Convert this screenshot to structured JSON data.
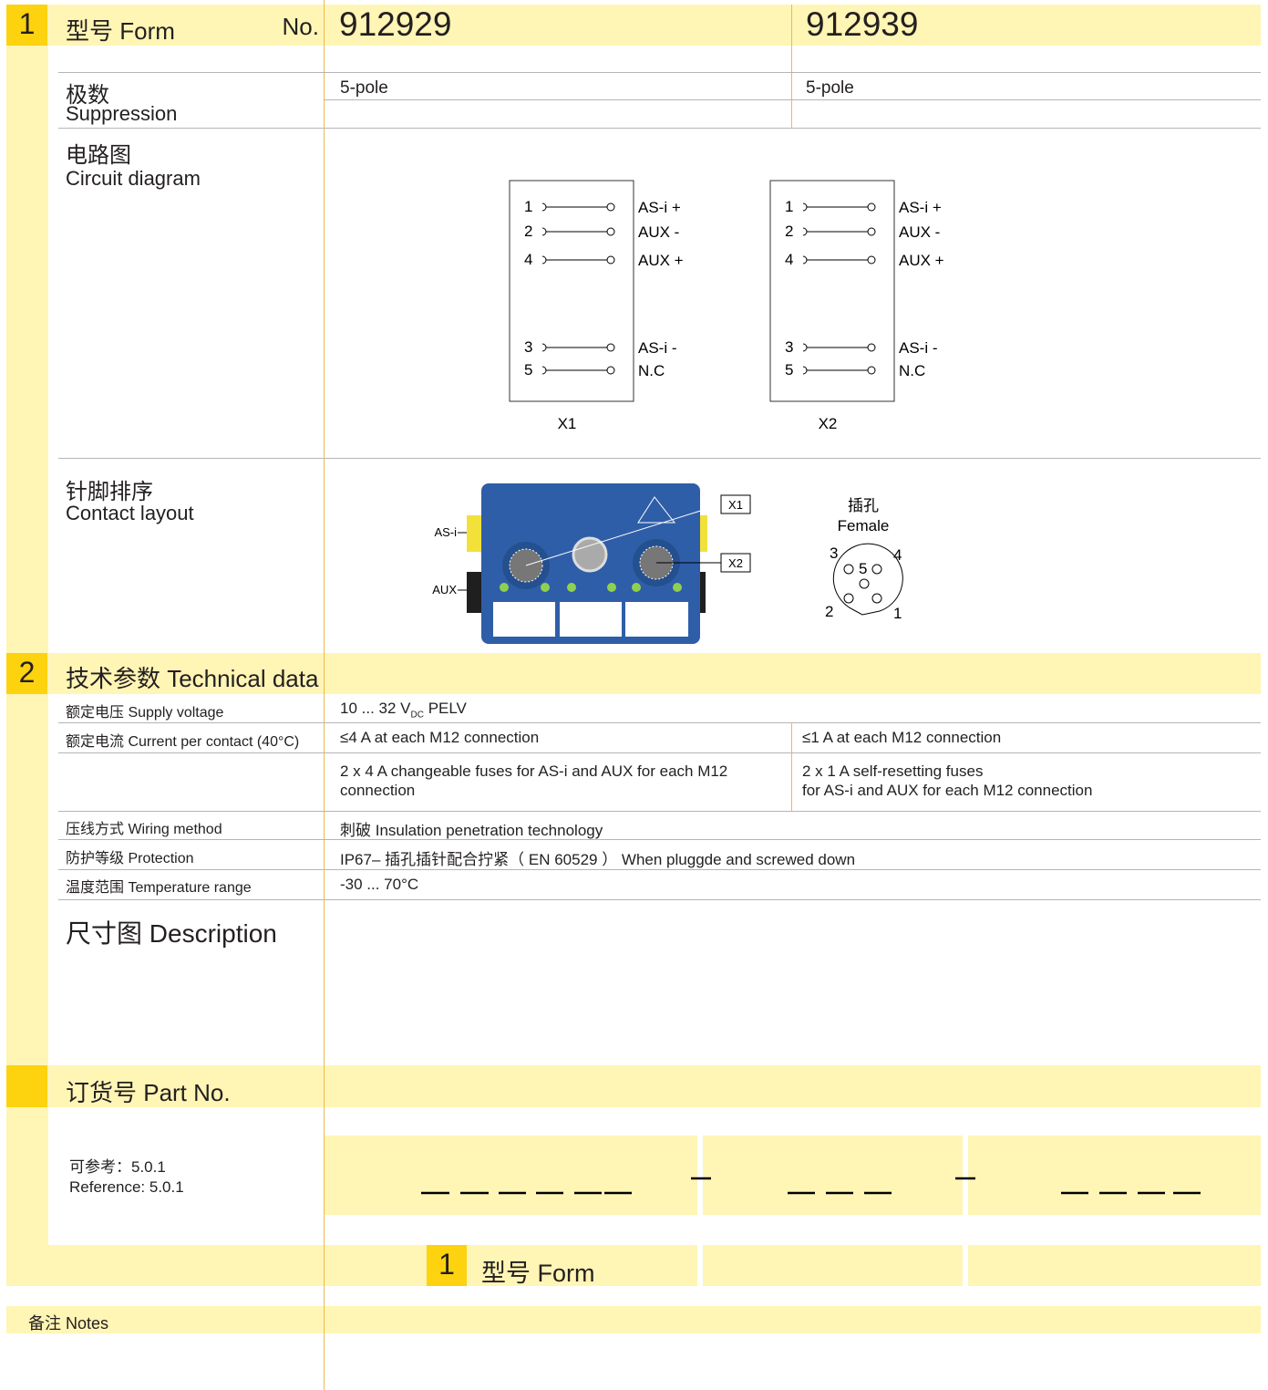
{
  "section1": {
    "number": "1",
    "title": "型号 Form",
    "no_label": "No.",
    "models": [
      "912929",
      "912939"
    ]
  },
  "poles": {
    "label_cn": "极数",
    "label_en": "Suppression",
    "values": [
      "5-pole",
      "5-pole"
    ]
  },
  "circuit": {
    "label_cn": "电路图",
    "label_en": "Circuit diagram",
    "connectors": [
      {
        "name": "X1",
        "pins": [
          {
            "pin": "1",
            "signal": "AS-i +"
          },
          {
            "pin": "2",
            "signal": "AUX -"
          },
          {
            "pin": "4",
            "signal": "AUX +"
          },
          {
            "pin": "3",
            "signal": "AS-i -"
          },
          {
            "pin": "5",
            "signal": "N.C"
          }
        ]
      },
      {
        "name": "X2",
        "pins": [
          {
            "pin": "1",
            "signal": "AS-i +"
          },
          {
            "pin": "2",
            "signal": "AUX -"
          },
          {
            "pin": "4",
            "signal": "AUX +"
          },
          {
            "pin": "3",
            "signal": "AS-i -"
          },
          {
            "pin": "5",
            "signal": "N.C"
          }
        ]
      }
    ]
  },
  "contact_layout": {
    "label_cn": "针脚排序",
    "label_en": "Contact layout",
    "device_labels": {
      "asi": "AS-i",
      "aux": "AUX",
      "x1": "X1",
      "x2": "X2"
    },
    "female_cn": "插孔",
    "female_en": "Female",
    "pins": [
      "3",
      "4",
      "5",
      "2",
      "1"
    ]
  },
  "section2": {
    "number": "2",
    "title": "技术参数 Technical data"
  },
  "technical": {
    "supply": {
      "label": "额定电压 Supply voltage",
      "value_main": "10 ... 32 V",
      "value_sub": "DC",
      "value_suffix": "PELV"
    },
    "current": {
      "label": "额定电流 Current per contact (40°C)",
      "values": [
        "≤4 A at each M12 connection",
        "≤1 A at each M12 connection"
      ]
    },
    "fuses": {
      "values": [
        "2 x 4 A changeable fuses for AS-i and AUX for each M12 connection",
        [
          "2 x 1 A self-resetting fuses",
          "for AS-i and AUX for each M12 connection"
        ]
      ]
    },
    "wiring": {
      "label": "压线方式 Wiring method",
      "value": "刺破  Insulation penetration technology"
    },
    "protection": {
      "label": "防护等级 Protection",
      "value": "IP67– 插孔插针配合拧紧（ EN 60529 ） When pluggde and screwed down"
    },
    "temperature": {
      "label": "温度范围 Temperature range",
      "value": "-30 ... 70°C"
    }
  },
  "description": {
    "title": "尺寸图 Description"
  },
  "part_no": {
    "title": "订货号 Part No.",
    "reference_cn": "可参考：5.0.1",
    "reference_en": "Reference: 5.0.1",
    "form_number": "1",
    "form_label": "型号 Form"
  },
  "notes": {
    "label": "备注 Notes"
  }
}
